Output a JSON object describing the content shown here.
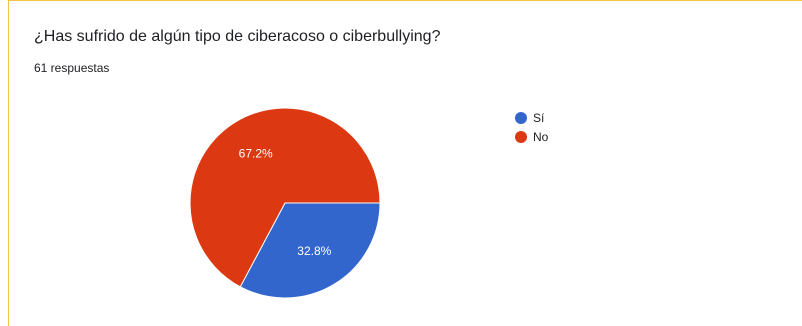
{
  "question": {
    "title": "¿Has sufrido de algún tipo de ciberacoso o ciberbullying?",
    "responses_label": "61 respuestas"
  },
  "colors": {
    "card_border": "#f4c542",
    "slice_border": "#ffffff"
  },
  "chart_data": {
    "type": "pie",
    "title": "",
    "legend_position": "right",
    "slices": [
      {
        "name": "Sí",
        "value": 32.8,
        "label": "32.8%",
        "color": "#3366cc"
      },
      {
        "name": "No",
        "value": 67.2,
        "label": "67.2%",
        "color": "#dc3912"
      }
    ]
  }
}
